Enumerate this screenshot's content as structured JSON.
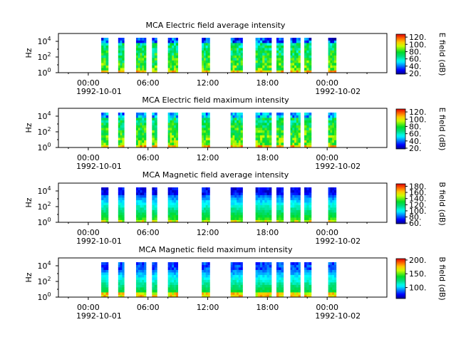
{
  "chart_data": [
    {
      "type": "heatmap",
      "title": "MCA  Electric field average intensity",
      "ylabel": "Hz",
      "ylim": [
        1,
        100000
      ],
      "y_ticks": [
        {
          "base": "10",
          "exp": "0"
        },
        {
          "base": "10",
          "exp": "2"
        },
        {
          "base": "10",
          "exp": "4"
        }
      ],
      "x_ticks": [
        "00:00",
        "06:00",
        "12:00",
        "18:00",
        "00:00"
      ],
      "x_dates": [
        "1992-10-01",
        "1992-10-02"
      ],
      "xlim_hours": [
        -3,
        30
      ],
      "colorbar": {
        "label": "E field (dB)",
        "range": [
          18,
          128
        ],
        "ticks": [
          "20.",
          "40.",
          "60.",
          "80.",
          "100.",
          "120."
        ],
        "tick_values": [
          20,
          40,
          60,
          80,
          100,
          120
        ]
      },
      "data_intervals_hours": [
        [
          1.3,
          2.0
        ],
        [
          3.0,
          3.6
        ],
        [
          4.8,
          5.8
        ],
        [
          6.4,
          6.9
        ],
        [
          8.0,
          9.0
        ],
        [
          11.4,
          12.2
        ],
        [
          14.3,
          15.5
        ],
        [
          16.8,
          18.4
        ],
        [
          18.9,
          19.6
        ],
        [
          20.3,
          21.3
        ],
        [
          21.7,
          22.4
        ],
        [
          24.1,
          24.9
        ]
      ],
      "profile": "electric-average"
    },
    {
      "type": "heatmap",
      "title": "MCA  Electric field maximum intensity",
      "ylabel": "Hz",
      "ylim": [
        1,
        100000
      ],
      "y_ticks": [
        {
          "base": "10",
          "exp": "0"
        },
        {
          "base": "10",
          "exp": "2"
        },
        {
          "base": "10",
          "exp": "4"
        }
      ],
      "x_ticks": [
        "00:00",
        "06:00",
        "12:00",
        "18:00",
        "00:00"
      ],
      "x_dates": [
        "1992-10-01",
        "1992-10-02"
      ],
      "xlim_hours": [
        -3,
        30
      ],
      "colorbar": {
        "label": "E field (dB)",
        "range": [
          18,
          128
        ],
        "ticks": [
          "20.",
          "40.",
          "60.",
          "80.",
          "100.",
          "120."
        ],
        "tick_values": [
          20,
          40,
          60,
          80,
          100,
          120
        ]
      },
      "data_intervals_hours": [
        [
          1.3,
          2.0
        ],
        [
          3.0,
          3.6
        ],
        [
          4.8,
          5.8
        ],
        [
          6.4,
          6.9
        ],
        [
          8.0,
          9.0
        ],
        [
          11.4,
          12.2
        ],
        [
          14.3,
          15.5
        ],
        [
          16.8,
          18.4
        ],
        [
          18.9,
          19.6
        ],
        [
          20.3,
          21.3
        ],
        [
          21.7,
          22.4
        ],
        [
          24.1,
          24.9
        ]
      ],
      "profile": "electric-maximum"
    },
    {
      "type": "heatmap",
      "title": "MCA  Magnetic field average intensity",
      "ylabel": "Hz",
      "ylim": [
        1,
        100000
      ],
      "y_ticks": [
        {
          "base": "10",
          "exp": "0"
        },
        {
          "base": "10",
          "exp": "2"
        },
        {
          "base": "10",
          "exp": "4"
        }
      ],
      "x_ticks": [
        "00:00",
        "06:00",
        "12:00",
        "18:00",
        "00:00"
      ],
      "x_dates": [
        "1992-10-01",
        "1992-10-02"
      ],
      "xlim_hours": [
        -3,
        30
      ],
      "colorbar": {
        "label": "B field (dB)",
        "range": [
          58,
          188
        ],
        "ticks": [
          "60.",
          "80.",
          "100.",
          "120.",
          "140.",
          "160.",
          "180."
        ],
        "tick_values": [
          60,
          80,
          100,
          120,
          140,
          160,
          180
        ]
      },
      "data_intervals_hours": [
        [
          1.3,
          2.0
        ],
        [
          3.0,
          3.6
        ],
        [
          4.8,
          5.8
        ],
        [
          6.4,
          6.9
        ],
        [
          8.0,
          9.0
        ],
        [
          11.4,
          12.2
        ],
        [
          14.3,
          15.5
        ],
        [
          16.8,
          18.4
        ],
        [
          18.9,
          19.6
        ],
        [
          20.3,
          21.3
        ],
        [
          21.7,
          22.4
        ],
        [
          24.1,
          24.9
        ]
      ],
      "profile": "magnetic-average"
    },
    {
      "type": "heatmap",
      "title": "MCA  Magnetic field maximum intensity",
      "ylabel": "Hz",
      "ylim": [
        1,
        100000
      ],
      "y_ticks": [
        {
          "base": "10",
          "exp": "0"
        },
        {
          "base": "10",
          "exp": "2"
        },
        {
          "base": "10",
          "exp": "4"
        }
      ],
      "x_ticks": [
        "00:00",
        "06:00",
        "12:00",
        "18:00",
        "00:00"
      ],
      "x_dates": [
        "1992-10-01",
        "1992-10-02"
      ],
      "xlim_hours": [
        -3,
        30
      ],
      "colorbar": {
        "label": "B field (dB)",
        "range": [
          60,
          205
        ],
        "ticks": [
          "100.",
          "150.",
          "200."
        ],
        "tick_values": [
          100,
          150,
          200
        ]
      },
      "data_intervals_hours": [
        [
          1.3,
          2.0
        ],
        [
          3.0,
          3.6
        ],
        [
          4.8,
          5.8
        ],
        [
          6.4,
          6.9
        ],
        [
          8.0,
          9.0
        ],
        [
          11.4,
          12.2
        ],
        [
          14.3,
          15.5
        ],
        [
          16.8,
          18.4
        ],
        [
          18.9,
          19.6
        ],
        [
          20.3,
          21.3
        ],
        [
          21.7,
          22.4
        ],
        [
          24.1,
          24.9
        ]
      ],
      "profile": "magnetic-maximum"
    }
  ]
}
